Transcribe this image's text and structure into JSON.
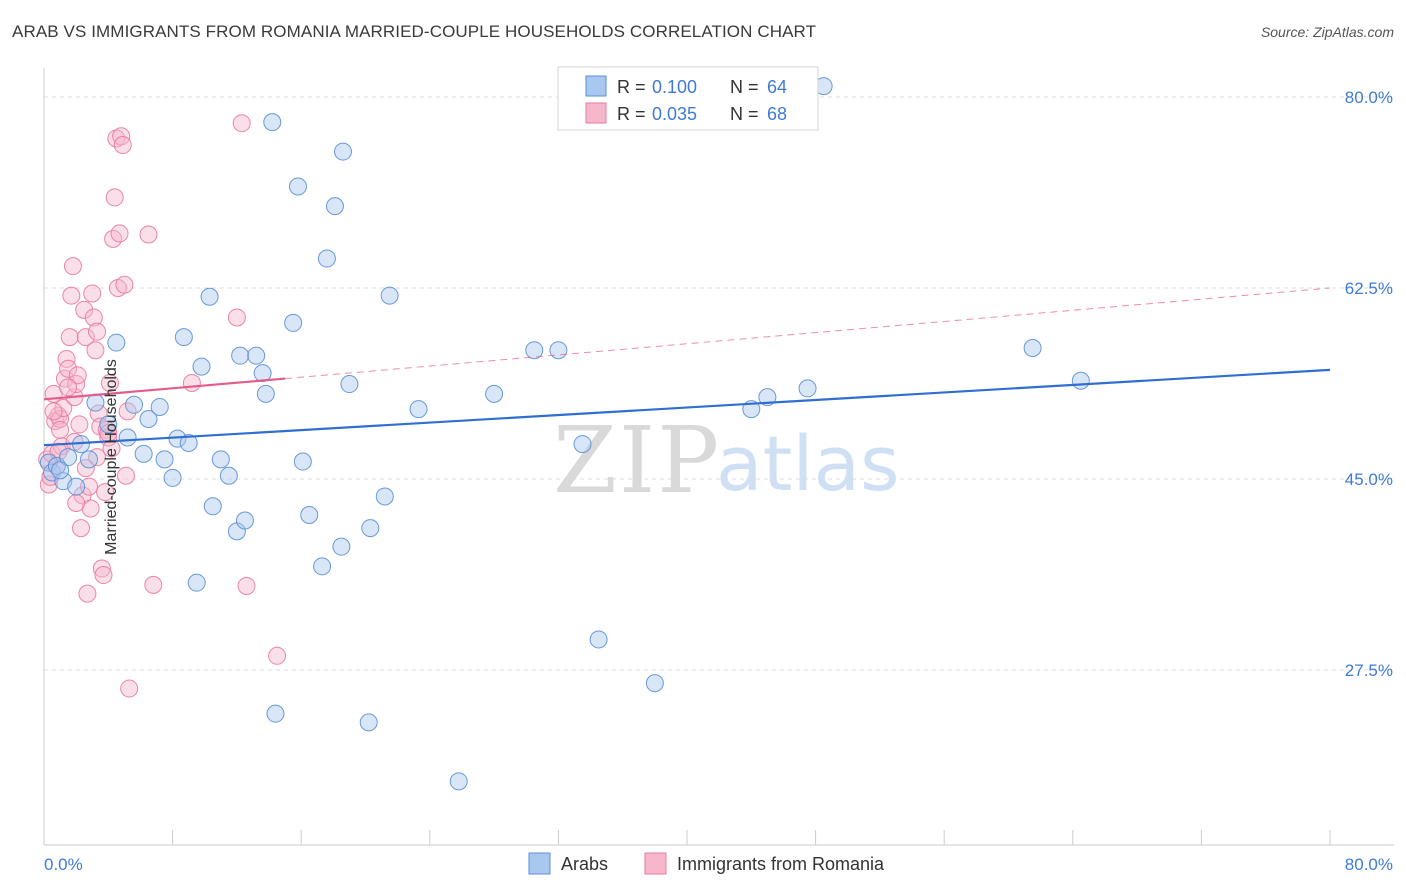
{
  "title": "ARAB VS IMMIGRANTS FROM ROMANIA MARRIED-COUPLE HOUSEHOLDS CORRELATION CHART",
  "source": "Source: ZipAtlas.com",
  "watermark": {
    "part1": "ZIP",
    "part2": "atlas"
  },
  "colors": {
    "arabs_fill": "#a9c8f0",
    "arabs_stroke": "#5b8fd6",
    "arabs_line": "#2f6fd1",
    "romania_fill": "#f7b7cb",
    "romania_stroke": "#e87a9f",
    "romania_line": "#e45c8a",
    "axis_text": "#3f7bd6",
    "grid": "#dddddd"
  },
  "legend": {
    "rows": [
      {
        "r_label": "R =",
        "r_value": "0.100",
        "n_label": "N =",
        "n_value": "64"
      },
      {
        "r_label": "R =",
        "r_value": "0.035",
        "n_label": "N =",
        "n_value": "68"
      }
    ]
  },
  "bottom_legend": {
    "arabs": "Arabs",
    "romania": "Immigrants from Romania"
  },
  "chart_data": {
    "type": "scatter",
    "title": "ARAB VS IMMIGRANTS FROM ROMANIA MARRIED-COUPLE HOUSEHOLDS CORRELATION CHART",
    "xlabel": "",
    "ylabel": "Married-couple Households",
    "xlim": [
      0,
      80
    ],
    "ylim": [
      10,
      83
    ],
    "x_tick_labels": {
      "left": "0.0%",
      "right": "80.0%"
    },
    "y_ticks": [
      27.5,
      45.0,
      62.5,
      80.0
    ],
    "y_tick_labels": [
      "27.5%",
      "45.0%",
      "62.5%",
      "80.0%"
    ],
    "series": [
      {
        "name": "Arabs",
        "R": 0.1,
        "N": 64,
        "trend": {
          "x0": 0,
          "y0": 48.1,
          "x1": 80,
          "y1": 55.0
        },
        "points": [
          [
            0.3,
            46.5
          ],
          [
            0.5,
            45.6
          ],
          [
            0.8,
            46.2
          ],
          [
            1.2,
            44.8
          ],
          [
            1.5,
            47.0
          ],
          [
            2.0,
            44.3
          ],
          [
            2.3,
            48.2
          ],
          [
            2.8,
            46.8
          ],
          [
            3.2,
            52.0
          ],
          [
            4.0,
            50.0
          ],
          [
            4.5,
            57.5
          ],
          [
            5.2,
            48.8
          ],
          [
            5.6,
            51.8
          ],
          [
            6.2,
            47.3
          ],
          [
            6.5,
            50.5
          ],
          [
            7.2,
            51.6
          ],
          [
            7.5,
            46.8
          ],
          [
            8.0,
            45.1
          ],
          [
            8.3,
            48.7
          ],
          [
            8.7,
            58.0
          ],
          [
            9.0,
            48.3
          ],
          [
            9.5,
            35.5
          ],
          [
            9.8,
            55.3
          ],
          [
            10.3,
            61.7
          ],
          [
            10.5,
            42.5
          ],
          [
            11.0,
            46.8
          ],
          [
            11.5,
            45.3
          ],
          [
            12.0,
            40.2
          ],
          [
            12.2,
            56.3
          ],
          [
            12.5,
            41.2
          ],
          [
            13.2,
            56.3
          ],
          [
            13.6,
            54.7
          ],
          [
            13.8,
            52.8
          ],
          [
            14.2,
            77.7
          ],
          [
            14.4,
            23.5
          ],
          [
            15.5,
            59.3
          ],
          [
            15.8,
            71.8
          ],
          [
            16.1,
            46.6
          ],
          [
            16.5,
            41.7
          ],
          [
            17.3,
            37.0
          ],
          [
            17.6,
            65.2
          ],
          [
            18.1,
            70.0
          ],
          [
            18.5,
            38.8
          ],
          [
            18.6,
            75.0
          ],
          [
            19.0,
            53.7
          ],
          [
            20.2,
            22.7
          ],
          [
            20.3,
            40.5
          ],
          [
            21.2,
            43.4
          ],
          [
            21.5,
            61.8
          ],
          [
            23.3,
            51.4
          ],
          [
            25.8,
            17.3
          ],
          [
            28.0,
            52.8
          ],
          [
            30.5,
            56.8
          ],
          [
            32.0,
            56.8
          ],
          [
            33.5,
            48.2
          ],
          [
            34.5,
            30.3
          ],
          [
            38.0,
            26.3
          ],
          [
            44.0,
            51.4
          ],
          [
            45.0,
            52.5
          ],
          [
            47.5,
            53.3
          ],
          [
            48.5,
            81.0
          ],
          [
            61.5,
            57.0
          ],
          [
            64.5,
            54.0
          ],
          [
            1.0,
            45.8
          ]
        ]
      },
      {
        "name": "Immigrants from Romania",
        "R": 0.035,
        "N": 68,
        "trend": {
          "x0": 0,
          "y0": 52.3,
          "x1": 15,
          "y1": 54.2
        },
        "trend_ext": {
          "x0": 15,
          "y0": 54.2,
          "x1": 80,
          "y1": 62.5
        },
        "points": [
          [
            0.2,
            46.8
          ],
          [
            0.3,
            44.5
          ],
          [
            0.4,
            45.2
          ],
          [
            0.5,
            47.3
          ],
          [
            0.6,
            52.8
          ],
          [
            0.7,
            50.3
          ],
          [
            0.8,
            46.2
          ],
          [
            0.9,
            50.8
          ],
          [
            1.0,
            50.5
          ],
          [
            1.1,
            48.0
          ],
          [
            1.2,
            51.5
          ],
          [
            1.3,
            54.2
          ],
          [
            1.4,
            56.0
          ],
          [
            1.5,
            55.1
          ],
          [
            1.6,
            58.0
          ],
          [
            1.7,
            61.8
          ],
          [
            1.8,
            64.5
          ],
          [
            1.9,
            52.5
          ],
          [
            2.0,
            53.7
          ],
          [
            2.1,
            54.5
          ],
          [
            2.2,
            50.0
          ],
          [
            2.3,
            40.5
          ],
          [
            2.4,
            43.5
          ],
          [
            2.5,
            60.5
          ],
          [
            2.6,
            58.0
          ],
          [
            2.7,
            34.5
          ],
          [
            2.8,
            44.3
          ],
          [
            2.9,
            42.3
          ],
          [
            3.0,
            62.0
          ],
          [
            3.1,
            59.8
          ],
          [
            3.2,
            56.8
          ],
          [
            3.3,
            47.0
          ],
          [
            3.4,
            51.0
          ],
          [
            3.5,
            49.8
          ],
          [
            3.6,
            36.8
          ],
          [
            3.7,
            36.2
          ],
          [
            3.8,
            43.8
          ],
          [
            3.9,
            49.5
          ],
          [
            4.0,
            48.8
          ],
          [
            4.1,
            53.8
          ],
          [
            4.2,
            47.8
          ],
          [
            4.3,
            67.0
          ],
          [
            4.4,
            70.8
          ],
          [
            4.5,
            76.2
          ],
          [
            4.6,
            62.5
          ],
          [
            4.7,
            67.5
          ],
          [
            4.8,
            76.4
          ],
          [
            4.9,
            75.6
          ],
          [
            5.0,
            62.8
          ],
          [
            5.1,
            45.3
          ],
          [
            5.2,
            51.2
          ],
          [
            5.3,
            25.8
          ],
          [
            6.5,
            67.4
          ],
          [
            6.8,
            35.3
          ],
          [
            9.2,
            53.8
          ],
          [
            12.0,
            59.8
          ],
          [
            12.3,
            77.6
          ],
          [
            12.6,
            35.2
          ],
          [
            14.5,
            28.8
          ],
          [
            0.9,
            47.5
          ],
          [
            1.5,
            53.4
          ],
          [
            2.0,
            42.8
          ],
          [
            3.3,
            58.5
          ],
          [
            4.0,
            49.2
          ],
          [
            1.0,
            49.5
          ],
          [
            0.6,
            51.2
          ],
          [
            2.6,
            46.0
          ],
          [
            1.9,
            48.4
          ]
        ]
      }
    ]
  }
}
